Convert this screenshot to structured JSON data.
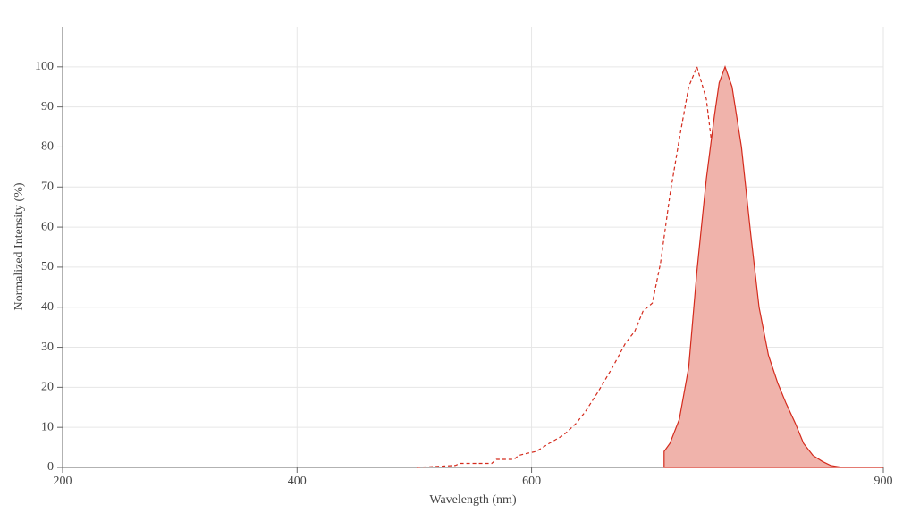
{
  "chart_data": {
    "type": "spectrum",
    "xlabel": "Wavelength (nm)",
    "ylabel": "Normalized Intensity (%)",
    "xlim": [
      200,
      900
    ],
    "xticks": [
      200,
      400,
      600,
      900
    ],
    "ylim": [
      0,
      110
    ],
    "yticks": [
      0,
      10,
      20,
      30,
      40,
      50,
      60,
      70,
      80,
      90,
      100
    ],
    "grid": true,
    "series": [
      {
        "style": "dashed",
        "color": "#d42a1c",
        "x": [
          502,
          535,
          539,
          566,
          570,
          585,
          589,
          596,
          604,
          615,
          627,
          638,
          646,
          657,
          669,
          680,
          688,
          695,
          703,
          710,
          718,
          726,
          734,
          741,
          749,
          756,
          764,
          772,
          779,
          787
        ],
        "values": [
          0,
          0.5,
          1,
          1,
          2,
          2,
          3,
          3.5,
          4,
          6,
          8,
          11,
          14,
          19,
          25,
          31,
          34,
          39,
          41,
          51,
          68,
          82,
          95,
          100,
          92,
          75,
          50,
          30,
          18,
          11
        ]
      },
      {
        "style": "area",
        "color": "#d42a1c",
        "fill": "#f0b3ab",
        "x": [
          713,
          718,
          726,
          734,
          741,
          749,
          756,
          760,
          765,
          771,
          779,
          787,
          794,
          802,
          810,
          817,
          825,
          832,
          840,
          848,
          855,
          865,
          900
        ],
        "values": [
          4,
          6,
          12,
          25,
          49,
          72,
          88,
          96,
          100,
          95,
          80,
          58,
          40,
          28,
          21,
          16,
          11,
          6,
          3,
          1.5,
          0.5,
          0,
          0
        ]
      }
    ]
  }
}
